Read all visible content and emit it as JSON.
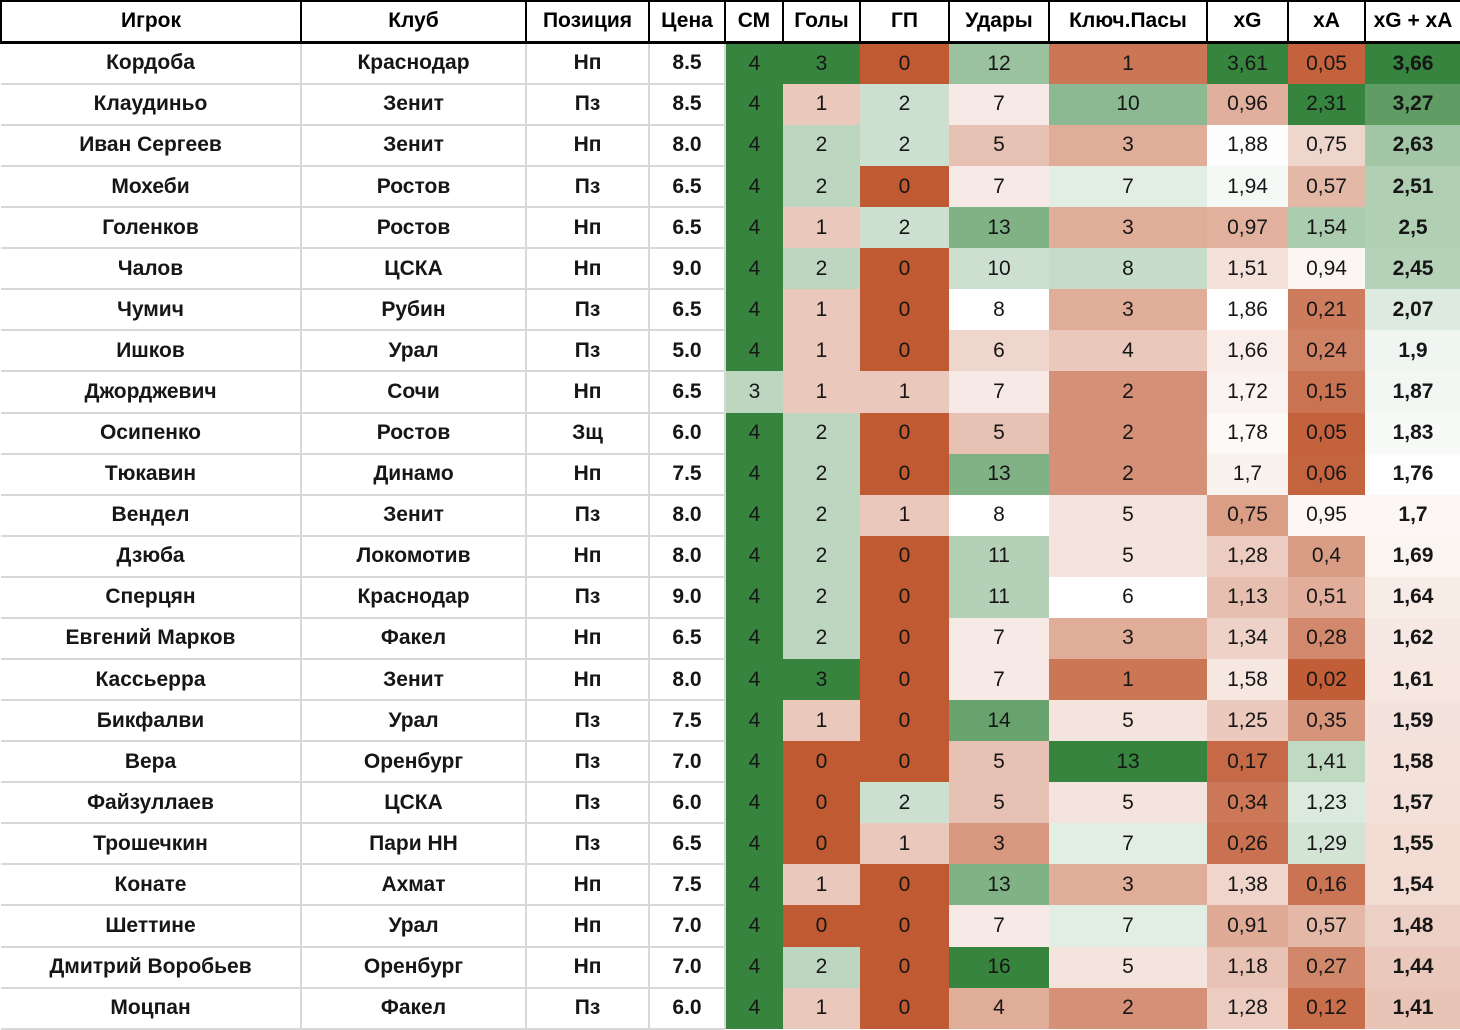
{
  "chart_data": {
    "type": "table",
    "columns": [
      {
        "key": "player",
        "label": "Игрок"
      },
      {
        "key": "club",
        "label": "Клуб"
      },
      {
        "key": "position",
        "label": "Позиция"
      },
      {
        "key": "price",
        "label": "Цена"
      },
      {
        "key": "sm",
        "label": "СМ"
      },
      {
        "key": "goals",
        "label": "Голы"
      },
      {
        "key": "gp",
        "label": "ГП"
      },
      {
        "key": "shots",
        "label": "Удары"
      },
      {
        "key": "key_passes",
        "label": "Ключ.Пасы"
      },
      {
        "key": "xg",
        "label": "xG"
      },
      {
        "key": "xa",
        "label": "xA"
      },
      {
        "key": "xg_xa",
        "label": "xG + xA"
      }
    ],
    "rows": [
      [
        "Кордоба",
        "Краснодар",
        "Нп",
        "8.5",
        "4",
        "3",
        "0",
        "12",
        "1",
        "3,61",
        "0,05",
        "3,66"
      ],
      [
        "Клаудиньо",
        "Зенит",
        "Пз",
        "8.5",
        "4",
        "1",
        "2",
        "7",
        "10",
        "0,96",
        "2,31",
        "3,27"
      ],
      [
        "Иван Сергеев",
        "Зенит",
        "Нп",
        "8.0",
        "4",
        "2",
        "2",
        "5",
        "3",
        "1,88",
        "0,75",
        "2,63"
      ],
      [
        "Мохеби",
        "Ростов",
        "Пз",
        "6.5",
        "4",
        "2",
        "0",
        "7",
        "7",
        "1,94",
        "0,57",
        "2,51"
      ],
      [
        "Голенков",
        "Ростов",
        "Нп",
        "6.5",
        "4",
        "1",
        "2",
        "13",
        "3",
        "0,97",
        "1,54",
        "2,5"
      ],
      [
        "Чалов",
        "ЦСКА",
        "Нп",
        "9.0",
        "4",
        "2",
        "0",
        "10",
        "8",
        "1,51",
        "0,94",
        "2,45"
      ],
      [
        "Чумич",
        "Рубин",
        "Пз",
        "6.5",
        "4",
        "1",
        "0",
        "8",
        "3",
        "1,86",
        "0,21",
        "2,07"
      ],
      [
        "Ишков",
        "Урал",
        "Пз",
        "5.0",
        "4",
        "1",
        "0",
        "6",
        "4",
        "1,66",
        "0,24",
        "1,9"
      ],
      [
        "Джорджевич",
        "Сочи",
        "Нп",
        "6.5",
        "3",
        "1",
        "1",
        "7",
        "2",
        "1,72",
        "0,15",
        "1,87"
      ],
      [
        "Осипенко",
        "Ростов",
        "Зщ",
        "6.0",
        "4",
        "2",
        "0",
        "5",
        "2",
        "1,78",
        "0,05",
        "1,83"
      ],
      [
        "Тюкавин",
        "Динамо",
        "Нп",
        "7.5",
        "4",
        "2",
        "0",
        "13",
        "2",
        "1,7",
        "0,06",
        "1,76"
      ],
      [
        "Вендел",
        "Зенит",
        "Пз",
        "8.0",
        "4",
        "2",
        "1",
        "8",
        "5",
        "0,75",
        "0,95",
        "1,7"
      ],
      [
        "Дзюба",
        "Локомотив",
        "Нп",
        "8.0",
        "4",
        "2",
        "0",
        "11",
        "5",
        "1,28",
        "0,4",
        "1,69"
      ],
      [
        "Сперцян",
        "Краснодар",
        "Пз",
        "9.0",
        "4",
        "2",
        "0",
        "11",
        "6",
        "1,13",
        "0,51",
        "1,64"
      ],
      [
        "Евгений Марков",
        "Факел",
        "Нп",
        "6.5",
        "4",
        "2",
        "0",
        "7",
        "3",
        "1,34",
        "0,28",
        "1,62"
      ],
      [
        "Кассьерра",
        "Зенит",
        "Нп",
        "8.0",
        "4",
        "3",
        "0",
        "7",
        "1",
        "1,58",
        "0,02",
        "1,61"
      ],
      [
        "Бикфалви",
        "Урал",
        "Пз",
        "7.5",
        "4",
        "1",
        "0",
        "14",
        "5",
        "1,25",
        "0,35",
        "1,59"
      ],
      [
        "Вера",
        "Оренбург",
        "Пз",
        "7.0",
        "4",
        "0",
        "0",
        "5",
        "13",
        "0,17",
        "1,41",
        "1,58"
      ],
      [
        "Файзуллаев",
        "ЦСКА",
        "Пз",
        "6.0",
        "4",
        "0",
        "2",
        "5",
        "5",
        "0,34",
        "1,23",
        "1,57"
      ],
      [
        "Трошечкин",
        "Пари НН",
        "Пз",
        "6.5",
        "4",
        "0",
        "1",
        "3",
        "7",
        "0,26",
        "1,29",
        "1,55"
      ],
      [
        "Конате",
        "Ахмат",
        "Нп",
        "7.5",
        "4",
        "1",
        "0",
        "13",
        "3",
        "1,38",
        "0,16",
        "1,54"
      ],
      [
        "Шеттине",
        "Урал",
        "Нп",
        "7.0",
        "4",
        "0",
        "0",
        "7",
        "7",
        "0,91",
        "0,57",
        "1,48"
      ],
      [
        "Дмитрий Воробьев",
        "Оренбург",
        "Нп",
        "7.0",
        "4",
        "2",
        "0",
        "16",
        "5",
        "1,18",
        "0,27",
        "1,44"
      ],
      [
        "Моцпан",
        "Факел",
        "Пз",
        "6.0",
        "4",
        "1",
        "0",
        "4",
        "2",
        "1,28",
        "0,12",
        "1,41"
      ]
    ],
    "layout": {
      "grid": "excel-style",
      "header_border_color": "#000000",
      "gridline_color": "#d8d8d8",
      "text_color": "#000000",
      "color_scale": {
        "min_color": "#c05a33",
        "mid_color": "#ffffff",
        "max_color": "#36843e"
      },
      "column_scales": {
        "sm": {
          "min": 0,
          "mid": 2.5,
          "max": 4
        },
        "goals": {
          "min": 0,
          "mid": 1.5,
          "max": 3
        },
        "gp": {
          "min": 0,
          "mid": 1.5,
          "max": 3.5
        },
        "shots": {
          "min": 0,
          "mid": 8,
          "max": 16
        },
        "key_passes": {
          "min": 0,
          "mid": 6,
          "max": 13
        },
        "xg": {
          "min": 0,
          "mid": 1.85,
          "max": 3.61
        },
        "xa": {
          "min": 0,
          "mid": 1.0,
          "max": 2.31
        },
        "xg_xa": {
          "min": 0.8,
          "mid": 1.75,
          "max": 3.66
        }
      }
    }
  }
}
